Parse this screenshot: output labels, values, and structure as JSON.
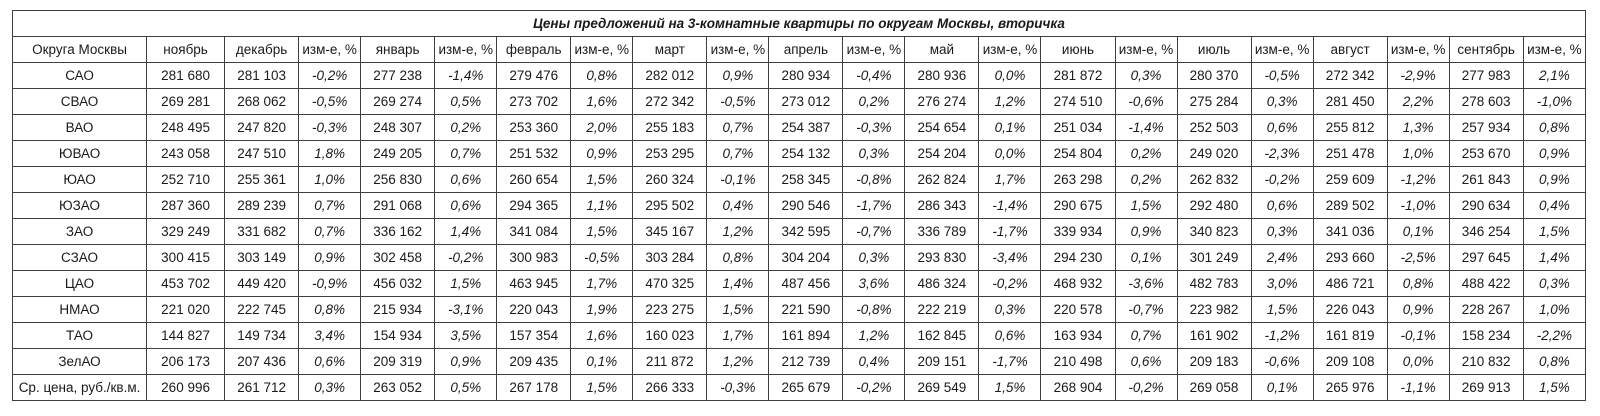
{
  "chart_data": {
    "type": "table",
    "title": "Цены предложений на 3-комнатные квартиры по округам Москвы, вторичка",
    "district_header": "Округа Москвы",
    "change_header": "изм-е, %",
    "months": [
      "ноябрь",
      "декабрь",
      "январь",
      "февраль",
      "март",
      "апрель",
      "май",
      "июнь",
      "июль",
      "август",
      "сентябрь"
    ],
    "colors": {
      "positive_fill": "#c6e0b4",
      "negative_fill": "#f4a678",
      "summary_label_fill": "#e2efda",
      "title_fill": "#f2f2f2",
      "border": "#3f3f3f"
    },
    "rows": [
      {
        "district": "САО",
        "values": [
          "281 680",
          "281 103",
          "277 238",
          "279 476",
          "282 012",
          "280 934",
          "280 936",
          "281 872",
          "280 370",
          "272 342",
          "277 983"
        ],
        "changes": [
          "-0,2%",
          "-1,4%",
          "0,8%",
          "0,9%",
          "-0,4%",
          "0,0%",
          "0,3%",
          "-0,5%",
          "-2,9%",
          "2,1%"
        ],
        "change_colors": [
          "o",
          "o",
          "g",
          "g",
          "o",
          "g",
          "g",
          "o",
          "o",
          "g"
        ]
      },
      {
        "district": "СВАО",
        "values": [
          "269 281",
          "268 062",
          "269 274",
          "273 702",
          "272 342",
          "273 012",
          "276 274",
          "274 510",
          "275 284",
          "281 450",
          "278 603"
        ],
        "changes": [
          "-0,5%",
          "0,5%",
          "1,6%",
          "-0,5%",
          "0,2%",
          "1,2%",
          "-0,6%",
          "0,3%",
          "2,2%",
          "-1,0%"
        ],
        "change_colors": [
          "o",
          "g",
          "g",
          "o",
          "g",
          "g",
          "o",
          "g",
          "g",
          "o"
        ]
      },
      {
        "district": "ВАО",
        "values": [
          "248 495",
          "247 820",
          "248 307",
          "253 360",
          "255 183",
          "254 387",
          "254 654",
          "251 034",
          "252 503",
          "255 812",
          "257 934"
        ],
        "changes": [
          "-0,3%",
          "0,2%",
          "2,0%",
          "0,7%",
          "-0,3%",
          "0,1%",
          "-1,4%",
          "0,6%",
          "1,3%",
          "0,8%"
        ],
        "change_colors": [
          "o",
          "g",
          "g",
          "g",
          "o",
          "g",
          "o",
          "g",
          "g",
          "g"
        ]
      },
      {
        "district": "ЮВАО",
        "values": [
          "243 058",
          "247 510",
          "249 205",
          "251 532",
          "253 295",
          "254 132",
          "254 204",
          "254 804",
          "249 020",
          "251 478",
          "253 670"
        ],
        "changes": [
          "1,8%",
          "0,7%",
          "0,9%",
          "0,7%",
          "0,3%",
          "0,0%",
          "0,2%",
          "-2,3%",
          "1,0%",
          "0,9%"
        ],
        "change_colors": [
          "g",
          "g",
          "g",
          "g",
          "g",
          "g",
          "g",
          "o",
          "g",
          "g"
        ]
      },
      {
        "district": "ЮАО",
        "values": [
          "252 710",
          "255 361",
          "256 830",
          "260 654",
          "260 324",
          "258 345",
          "262 824",
          "263 298",
          "262 832",
          "259 609",
          "261 843"
        ],
        "changes": [
          "1,0%",
          "0,6%",
          "1,5%",
          "-0,1%",
          "-0,8%",
          "1,7%",
          "0,2%",
          "-0,2%",
          "-1,2%",
          "0,9%"
        ],
        "change_colors": [
          "g",
          "g",
          "g",
          "o",
          "o",
          "g",
          "g",
          "o",
          "o",
          "g"
        ]
      },
      {
        "district": "ЮЗАО",
        "values": [
          "287 360",
          "289 239",
          "291 068",
          "294 365",
          "295 502",
          "290 546",
          "286 343",
          "290 675",
          "292 480",
          "289 502",
          "290 634"
        ],
        "changes": [
          "0,7%",
          "0,6%",
          "1,1%",
          "0,4%",
          "-1,7%",
          "-1,4%",
          "1,5%",
          "0,6%",
          "-1,0%",
          "0,4%"
        ],
        "change_colors": [
          "g",
          "g",
          "g",
          "g",
          "o",
          "o",
          "g",
          "g",
          "o",
          "g"
        ]
      },
      {
        "district": "ЗАО",
        "values": [
          "329 249",
          "331 682",
          "336 162",
          "341 084",
          "345 167",
          "342 595",
          "336 789",
          "339 934",
          "340 823",
          "341 036",
          "346 254"
        ],
        "changes": [
          "0,7%",
          "1,4%",
          "1,5%",
          "1,2%",
          "-0,7%",
          "-1,7%",
          "0,9%",
          "0,3%",
          "0,1%",
          "1,5%"
        ],
        "change_colors": [
          "g",
          "g",
          "g",
          "g",
          "o",
          "o",
          "g",
          "g",
          "g",
          "g"
        ]
      },
      {
        "district": "СЗАО",
        "values": [
          "300 415",
          "303 149",
          "302 458",
          "300 983",
          "303 284",
          "304 204",
          "293 830",
          "294 230",
          "301 249",
          "293 660",
          "297 645"
        ],
        "changes": [
          "0,9%",
          "-0,2%",
          "-0,5%",
          "0,8%",
          "0,3%",
          "-3,4%",
          "0,1%",
          "2,4%",
          "-2,5%",
          "1,4%"
        ],
        "change_colors": [
          "g",
          "o",
          "o",
          "g",
          "g",
          "o",
          "g",
          "g",
          "o",
          "g"
        ]
      },
      {
        "district": "ЦАО",
        "values": [
          "453 702",
          "449 420",
          "456 032",
          "463 945",
          "470 325",
          "487 456",
          "486 324",
          "468 932",
          "482 783",
          "486 721",
          "488 422"
        ],
        "changes": [
          "-0,9%",
          "1,5%",
          "1,7%",
          "1,4%",
          "3,6%",
          "-0,2%",
          "-3,6%",
          "3,0%",
          "0,8%",
          "0,3%"
        ],
        "change_colors": [
          "o",
          "g",
          "g",
          "g",
          "g",
          "o",
          "o",
          "g",
          "g",
          "g"
        ]
      },
      {
        "district": "НМАО",
        "values": [
          "221 020",
          "222 745",
          "215 934",
          "220 043",
          "223 275",
          "221 590",
          "222 219",
          "220 578",
          "223 982",
          "226 043",
          "228 267"
        ],
        "changes": [
          "0,8%",
          "-3,1%",
          "1,9%",
          "1,5%",
          "-0,8%",
          "0,3%",
          "-0,7%",
          "1,5%",
          "0,9%",
          "1,0%"
        ],
        "change_colors": [
          "g",
          "o",
          "g",
          "g",
          "o",
          "g",
          "o",
          "g",
          "g",
          "g"
        ]
      },
      {
        "district": "ТАО",
        "values": [
          "144 827",
          "149 734",
          "154 934",
          "157 354",
          "160 023",
          "161 894",
          "162 845",
          "163 934",
          "161 902",
          "161 819",
          "158 234"
        ],
        "changes": [
          "3,4%",
          "3,5%",
          "1,6%",
          "1,7%",
          "1,2%",
          "0,6%",
          "0,7%",
          "-1,2%",
          "-0,1%",
          "-2,2%"
        ],
        "change_colors": [
          "g",
          "g",
          "g",
          "g",
          "g",
          "g",
          "g",
          "o",
          "o",
          "o"
        ]
      },
      {
        "district": "ЗелАО",
        "values": [
          "206 173",
          "207 436",
          "209 319",
          "209 435",
          "211 872",
          "212 739",
          "209 151",
          "210 498",
          "209 183",
          "209 108",
          "210 832"
        ],
        "changes": [
          "0,6%",
          "0,9%",
          "0,1%",
          "1,2%",
          "0,4%",
          "-1,7%",
          "0,6%",
          "-0,6%",
          "0,0%",
          "0,8%"
        ],
        "change_colors": [
          "g",
          "g",
          "g",
          "g",
          "g",
          "o",
          "g",
          "o",
          "o",
          "g"
        ]
      },
      {
        "district": "Ср. цена, руб./кв.м.",
        "is_summary": true,
        "values": [
          "260 996",
          "261 712",
          "263 052",
          "267 178",
          "266 333",
          "265 679",
          "269 549",
          "268 904",
          "269 058",
          "265 976",
          "269 913"
        ],
        "changes": [
          "0,3%",
          "0,5%",
          "1,5%",
          "-0,3%",
          "-0,2%",
          "1,5%",
          "-0,2%",
          "0,1%",
          "-1,1%",
          "1,5%"
        ],
        "change_colors": [
          "g",
          "g",
          "g",
          "o",
          "o",
          "g",
          "o",
          "g",
          "o",
          "g"
        ]
      }
    ]
  }
}
